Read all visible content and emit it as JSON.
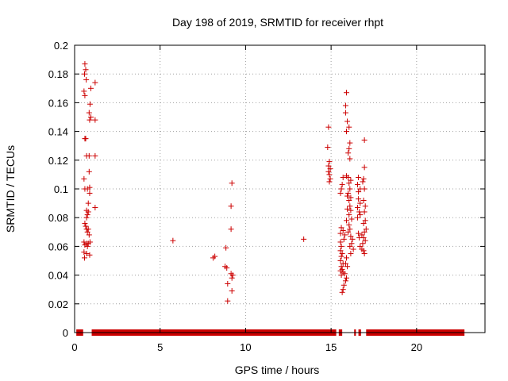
{
  "chart_data": {
    "type": "scatter",
    "title": "Day 198 of 2019, SRMTID for receiver rhpt",
    "xlabel": "GPS time / hours",
    "ylabel": "SRMTID / TECUs",
    "xlim": [
      0,
      24
    ],
    "ylim": [
      0,
      0.2
    ],
    "x_ticks": [
      0,
      5,
      10,
      15,
      20
    ],
    "y_ticks": [
      0,
      0.02,
      0.04,
      0.06,
      0.08,
      0.1,
      0.12,
      0.14,
      0.16,
      0.18,
      0.2
    ],
    "x_tick_labels": [
      "0",
      "5",
      "10",
      "15",
      "20"
    ],
    "y_tick_labels": [
      "0",
      "0.02",
      "0.04",
      "0.06",
      "0.08",
      "0.1",
      "0.12",
      "0.14",
      "0.16",
      "0.18",
      "0.2"
    ],
    "grid": true,
    "marker": "plus",
    "color": "#cc0000",
    "series": [
      {
        "points": [
          [
            0.6,
            0.187
          ],
          [
            0.65,
            0.183
          ],
          [
            0.58,
            0.18
          ],
          [
            0.68,
            0.176
          ],
          [
            1.2,
            0.174
          ],
          [
            0.55,
            0.168
          ],
          [
            0.6,
            0.165
          ],
          [
            0.95,
            0.17
          ],
          [
            0.9,
            0.159
          ],
          [
            0.85,
            0.153
          ],
          [
            0.95,
            0.15
          ],
          [
            0.88,
            0.148
          ],
          [
            1.2,
            0.148
          ],
          [
            0.6,
            0.135
          ],
          [
            0.65,
            0.135
          ],
          [
            0.7,
            0.123
          ],
          [
            0.85,
            0.123
          ],
          [
            1.2,
            0.123
          ],
          [
            0.85,
            0.112
          ],
          [
            0.55,
            0.107
          ],
          [
            0.6,
            0.1
          ],
          [
            0.75,
            0.1
          ],
          [
            0.88,
            0.101
          ],
          [
            0.88,
            0.097
          ],
          [
            0.8,
            0.09
          ],
          [
            1.2,
            0.087
          ],
          [
            0.7,
            0.085
          ],
          [
            0.8,
            0.084
          ],
          [
            0.75,
            0.082
          ],
          [
            0.7,
            0.08
          ],
          [
            0.6,
            0.076
          ],
          [
            0.65,
            0.074
          ],
          [
            0.7,
            0.072
          ],
          [
            0.8,
            0.072
          ],
          [
            0.75,
            0.07
          ],
          [
            0.85,
            0.068
          ],
          [
            0.55,
            0.063
          ],
          [
            0.7,
            0.062
          ],
          [
            0.9,
            0.063
          ],
          [
            0.8,
            0.062
          ],
          [
            0.6,
            0.061
          ],
          [
            0.75,
            0.06
          ],
          [
            0.55,
            0.056
          ],
          [
            0.7,
            0.055
          ],
          [
            0.88,
            0.054
          ],
          [
            0.58,
            0.052
          ],
          [
            5.75,
            0.064
          ],
          [
            8.1,
            0.052
          ],
          [
            8.2,
            0.053
          ],
          [
            8.85,
            0.059
          ],
          [
            8.8,
            0.046
          ],
          [
            8.9,
            0.045
          ],
          [
            9.15,
            0.041
          ],
          [
            9.25,
            0.04
          ],
          [
            9.2,
            0.038
          ],
          [
            8.95,
            0.034
          ],
          [
            9.2,
            0.029
          ],
          [
            8.95,
            0.022
          ],
          [
            9.2,
            0.104
          ],
          [
            9.15,
            0.088
          ],
          [
            9.15,
            0.072
          ],
          [
            13.4,
            0.065
          ],
          [
            14.85,
            0.143
          ],
          [
            14.8,
            0.129
          ],
          [
            14.9,
            0.119
          ],
          [
            14.85,
            0.116
          ],
          [
            14.95,
            0.114
          ],
          [
            14.85,
            0.112
          ],
          [
            14.9,
            0.11
          ],
          [
            14.95,
            0.107
          ],
          [
            14.9,
            0.105
          ],
          [
            15.9,
            0.167
          ],
          [
            15.85,
            0.158
          ],
          [
            15.85,
            0.153
          ],
          [
            15.95,
            0.147
          ],
          [
            16.05,
            0.143
          ],
          [
            15.9,
            0.14
          ],
          [
            16.1,
            0.132
          ],
          [
            16.05,
            0.128
          ],
          [
            16.0,
            0.125
          ],
          [
            16.1,
            0.121
          ],
          [
            16.95,
            0.134
          ],
          [
            16.95,
            0.115
          ],
          [
            16.9,
            0.107
          ],
          [
            16.85,
            0.105
          ],
          [
            16.95,
            0.1
          ],
          [
            16.7,
            0.1
          ],
          [
            16.6,
            0.108
          ],
          [
            16.55,
            0.103
          ],
          [
            16.6,
            0.098
          ],
          [
            15.7,
            0.108
          ],
          [
            15.65,
            0.103
          ],
          [
            15.6,
            0.1
          ],
          [
            15.55,
            0.097
          ],
          [
            15.9,
            0.109
          ],
          [
            16.0,
            0.108
          ],
          [
            16.15,
            0.106
          ],
          [
            16.05,
            0.104
          ],
          [
            16.1,
            0.1
          ],
          [
            16.0,
            0.097
          ],
          [
            15.95,
            0.095
          ],
          [
            16.15,
            0.094
          ],
          [
            16.05,
            0.092
          ],
          [
            16.1,
            0.088
          ],
          [
            15.95,
            0.086
          ],
          [
            16.15,
            0.085
          ],
          [
            16.05,
            0.082
          ],
          [
            16.2,
            0.079
          ],
          [
            15.9,
            0.078
          ],
          [
            16.6,
            0.093
          ],
          [
            16.7,
            0.09
          ],
          [
            16.55,
            0.087
          ],
          [
            16.65,
            0.084
          ],
          [
            16.7,
            0.082
          ],
          [
            16.55,
            0.08
          ],
          [
            16.9,
            0.092
          ],
          [
            17.0,
            0.088
          ],
          [
            16.95,
            0.084
          ],
          [
            17.0,
            0.078
          ],
          [
            16.9,
            0.076
          ],
          [
            17.05,
            0.072
          ],
          [
            16.95,
            0.07
          ],
          [
            16.8,
            0.068
          ],
          [
            16.9,
            0.066
          ],
          [
            17.0,
            0.064
          ],
          [
            16.85,
            0.062
          ],
          [
            16.7,
            0.06
          ],
          [
            16.8,
            0.058
          ],
          [
            16.9,
            0.057
          ],
          [
            16.95,
            0.055
          ],
          [
            16.6,
            0.069
          ],
          [
            16.65,
            0.066
          ],
          [
            15.6,
            0.073
          ],
          [
            15.7,
            0.071
          ],
          [
            15.55,
            0.069
          ],
          [
            15.8,
            0.068
          ],
          [
            15.75,
            0.065
          ],
          [
            16.05,
            0.075
          ],
          [
            16.1,
            0.072
          ],
          [
            16.0,
            0.07
          ],
          [
            16.15,
            0.067
          ],
          [
            16.25,
            0.065
          ],
          [
            16.2,
            0.062
          ],
          [
            16.1,
            0.06
          ],
          [
            16.3,
            0.058
          ],
          [
            16.15,
            0.055
          ],
          [
            15.55,
            0.063
          ],
          [
            15.6,
            0.06
          ],
          [
            15.55,
            0.057
          ],
          [
            15.65,
            0.055
          ],
          [
            15.6,
            0.053
          ],
          [
            15.55,
            0.05
          ],
          [
            15.7,
            0.048
          ],
          [
            15.6,
            0.046
          ],
          [
            15.65,
            0.044
          ],
          [
            15.55,
            0.043
          ],
          [
            15.7,
            0.042
          ],
          [
            15.6,
            0.04
          ],
          [
            15.9,
            0.052
          ],
          [
            15.85,
            0.048
          ],
          [
            15.95,
            0.046
          ],
          [
            15.8,
            0.041
          ],
          [
            15.9,
            0.038
          ],
          [
            15.85,
            0.036
          ],
          [
            15.75,
            0.033
          ],
          [
            15.7,
            0.03
          ],
          [
            15.65,
            0.028
          ]
        ]
      }
    ],
    "zero_bands": [
      [
        0.1,
        0.5
      ],
      [
        1.0,
        15.3
      ],
      [
        15.45,
        15.65
      ],
      [
        16.35,
        16.45
      ],
      [
        16.6,
        16.75
      ],
      [
        17.05,
        22.8
      ]
    ]
  }
}
